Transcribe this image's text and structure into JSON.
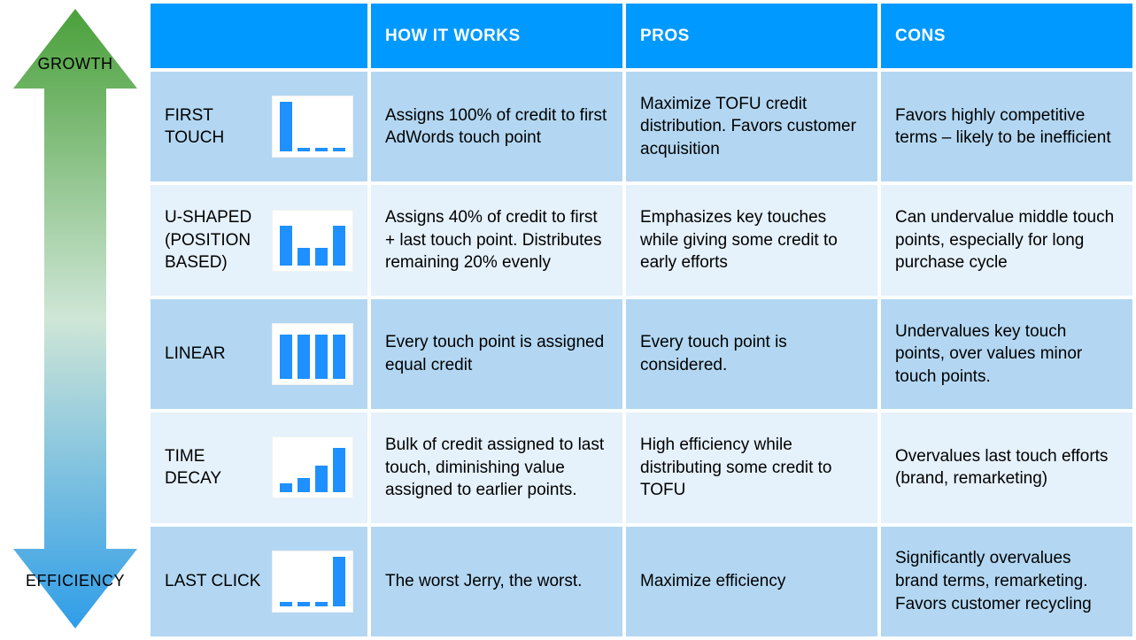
{
  "arrow": {
    "top_label": "GROWTH",
    "bottom_label": "EFFICIENCY",
    "gradient_top": "#4aa03a",
    "gradient_mid": "#cfe6d7",
    "gradient_bottom": "#2f9de8"
  },
  "colors": {
    "header_bg": "#0099ff",
    "header_text": "#ffffff",
    "row_odd": "#b3d7f2",
    "row_even": "#e5f1fb",
    "bar_color": "#1e90ff",
    "text": "#000000"
  },
  "table": {
    "headers": [
      "",
      "HOW IT WORKS",
      "PROS",
      "CONS"
    ],
    "rows": [
      {
        "name": "FIRST TOUCH",
        "chart": {
          "type": "bar",
          "values": [
            100,
            8,
            8,
            8
          ],
          "bar_color": "#1e90ff"
        },
        "how": "Assigns 100% of credit to first AdWords touch point",
        "pros": "Maximize TOFU credit distribution. Favors customer acquisition",
        "cons": "Favors highly competitive terms – likely to be inefficient"
      },
      {
        "name": "U-SHAPED (POSITION BASED)",
        "chart": {
          "type": "bar",
          "values": [
            80,
            35,
            35,
            80
          ],
          "bar_color": "#1e90ff"
        },
        "how": "Assigns 40% of credit to first + last touch point. Distributes remaining 20% evenly",
        "pros": "Emphasizes key touches while giving some credit to early efforts",
        "cons": "Can undervalue middle touch points, especially for long purchase cycle"
      },
      {
        "name": "LINEAR",
        "chart": {
          "type": "bar",
          "values": [
            90,
            90,
            90,
            90
          ],
          "bar_color": "#1e90ff"
        },
        "how": "Every touch point is assigned equal credit",
        "pros": "Every touch point is considered.",
        "cons": "Undervalues key touch points, over values minor touch points."
      },
      {
        "name": "TIME DECAY",
        "chart": {
          "type": "bar",
          "values": [
            18,
            30,
            55,
            90
          ],
          "bar_color": "#1e90ff"
        },
        "how": "Bulk of credit assigned to last touch, diminishing value assigned to earlier points.",
        "pros": "High efficiency while distributing some credit to TOFU",
        "cons": "Overvalues last touch efforts (brand, remarketing)"
      },
      {
        "name": "LAST CLICK",
        "chart": {
          "type": "bar",
          "values": [
            8,
            8,
            8,
            100
          ],
          "bar_color": "#1e90ff"
        },
        "how": "The worst Jerry, the worst.",
        "pros": "Maximize efficiency",
        "cons": "Significantly overvalues brand terms, remarketing. Favors customer recycling"
      }
    ]
  }
}
